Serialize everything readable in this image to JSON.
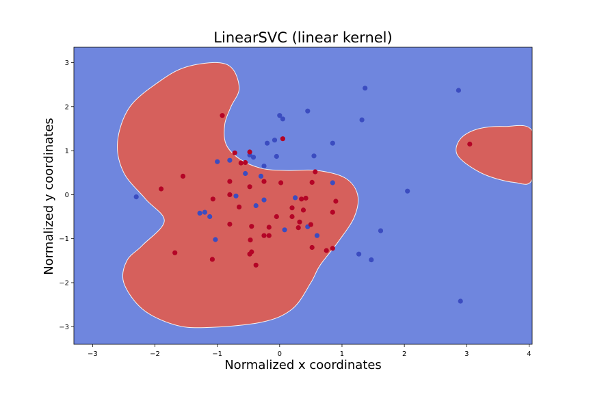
{
  "chart_data": {
    "type": "scatter",
    "title": "LinearSVC (linear kernel)",
    "xlabel": "Normalized x coordinates",
    "ylabel": "Normalized y coordinates",
    "xlim": [
      -3.3,
      4.05
    ],
    "ylim": [
      -3.4,
      3.35
    ],
    "x_ticks": [
      -3,
      -2,
      -1,
      0,
      1,
      2,
      3,
      4
    ],
    "y_ticks": [
      -3,
      -2,
      -1,
      0,
      1,
      2,
      3
    ],
    "grid": false,
    "colors": {
      "background_region": "#6f86de",
      "decision_region": "#d6605c",
      "class_0_point": "#3b4cc0",
      "class_1_point": "#b40426"
    },
    "decision_regions": [
      [
        [
          -1.0,
          3.0
        ],
        [
          -0.75,
          2.85
        ],
        [
          -0.65,
          2.4
        ],
        [
          -0.78,
          2.0
        ],
        [
          -0.88,
          1.6
        ],
        [
          -0.86,
          1.15
        ],
        [
          -0.65,
          0.82
        ],
        [
          -0.3,
          0.6
        ],
        [
          0.1,
          0.55
        ],
        [
          0.6,
          0.55
        ],
        [
          1.05,
          0.38
        ],
        [
          1.25,
          0.0
        ],
        [
          1.2,
          -0.5
        ],
        [
          0.95,
          -1.05
        ],
        [
          0.65,
          -1.6
        ],
        [
          0.5,
          -2.0
        ],
        [
          0.2,
          -2.6
        ],
        [
          -0.3,
          -2.9
        ],
        [
          -1.2,
          -3.02
        ],
        [
          -1.7,
          -2.95
        ],
        [
          -2.2,
          -2.6
        ],
        [
          -2.5,
          -2.0
        ],
        [
          -2.45,
          -1.5
        ],
        [
          -2.2,
          -1.15
        ],
        [
          -1.85,
          -0.6
        ],
        [
          -2.15,
          -0.1
        ],
        [
          -2.5,
          0.5
        ],
        [
          -2.6,
          1.2
        ],
        [
          -2.4,
          2.0
        ],
        [
          -1.9,
          2.6
        ],
        [
          -1.5,
          2.9
        ]
      ],
      [
        [
          3.6,
          1.55
        ],
        [
          4.05,
          1.45
        ],
        [
          4.05,
          0.35
        ],
        [
          3.75,
          0.28
        ],
        [
          3.3,
          0.45
        ],
        [
          2.95,
          0.75
        ],
        [
          2.83,
          1.0
        ],
        [
          2.92,
          1.3
        ],
        [
          3.2,
          1.5
        ]
      ]
    ],
    "series": [
      {
        "points": [
          [
            -2.3,
            -0.05
          ],
          [
            -1.0,
            0.75
          ],
          [
            -0.8,
            0.78
          ],
          [
            -0.7,
            -0.03
          ],
          [
            -0.55,
            0.48
          ],
          [
            -0.48,
            0.9
          ],
          [
            -0.42,
            0.85
          ],
          [
            -0.38,
            -0.25
          ],
          [
            -0.3,
            0.42
          ],
          [
            -0.25,
            0.65
          ],
          [
            -0.25,
            -0.12
          ],
          [
            -0.2,
            1.17
          ],
          [
            -0.08,
            1.24
          ],
          [
            -0.05,
            0.87
          ],
          [
            0.0,
            1.8
          ],
          [
            0.05,
            1.72
          ],
          [
            0.45,
            1.9
          ],
          [
            0.55,
            0.88
          ],
          [
            0.85,
            1.17
          ],
          [
            0.85,
            0.27
          ],
          [
            0.25,
            -0.07
          ],
          [
            0.45,
            -0.73
          ],
          [
            0.6,
            -0.93
          ],
          [
            0.08,
            -0.8
          ],
          [
            -1.28,
            -0.42
          ],
          [
            -1.2,
            -0.4
          ],
          [
            -1.12,
            -0.5
          ],
          [
            -1.03,
            -1.02
          ],
          [
            1.37,
            2.42
          ],
          [
            1.32,
            1.7
          ],
          [
            1.27,
            -1.35
          ],
          [
            1.47,
            -1.48
          ],
          [
            1.62,
            -0.82
          ],
          [
            2.05,
            0.08
          ],
          [
            2.87,
            2.37
          ],
          [
            2.9,
            -2.42
          ]
        ]
      },
      {
        "points": [
          [
            -0.92,
            1.8
          ],
          [
            -0.72,
            0.95
          ],
          [
            -0.62,
            0.72
          ],
          [
            -0.55,
            0.73
          ],
          [
            -0.48,
            0.97
          ],
          [
            0.05,
            1.27
          ],
          [
            -1.9,
            0.13
          ],
          [
            -1.55,
            0.42
          ],
          [
            -1.07,
            -0.1
          ],
          [
            -0.8,
            0.3
          ],
          [
            -0.8,
            0.0
          ],
          [
            -0.65,
            -0.28
          ],
          [
            -0.8,
            -0.67
          ],
          [
            -0.48,
            0.18
          ],
          [
            -0.25,
            0.3
          ],
          [
            0.02,
            0.27
          ],
          [
            0.52,
            0.28
          ],
          [
            0.57,
            0.52
          ],
          [
            0.35,
            -0.1
          ],
          [
            0.42,
            -0.08
          ],
          [
            0.9,
            -0.15
          ],
          [
            0.2,
            -0.3
          ],
          [
            0.38,
            -0.35
          ],
          [
            -0.05,
            -0.5
          ],
          [
            0.2,
            -0.5
          ],
          [
            0.32,
            -0.62
          ],
          [
            0.3,
            -0.75
          ],
          [
            0.5,
            -0.68
          ],
          [
            0.85,
            -0.4
          ],
          [
            -0.45,
            -0.72
          ],
          [
            -0.17,
            -0.74
          ],
          [
            -0.25,
            -0.93
          ],
          [
            -0.17,
            -0.93
          ],
          [
            -0.47,
            -1.03
          ],
          [
            -1.68,
            -1.32
          ],
          [
            -1.08,
            -1.47
          ],
          [
            -0.45,
            -1.3
          ],
          [
            -0.48,
            -1.35
          ],
          [
            -0.38,
            -1.6
          ],
          [
            0.52,
            -1.2
          ],
          [
            0.75,
            -1.27
          ],
          [
            0.85,
            -1.22
          ],
          [
            3.05,
            1.15
          ]
        ]
      }
    ]
  }
}
